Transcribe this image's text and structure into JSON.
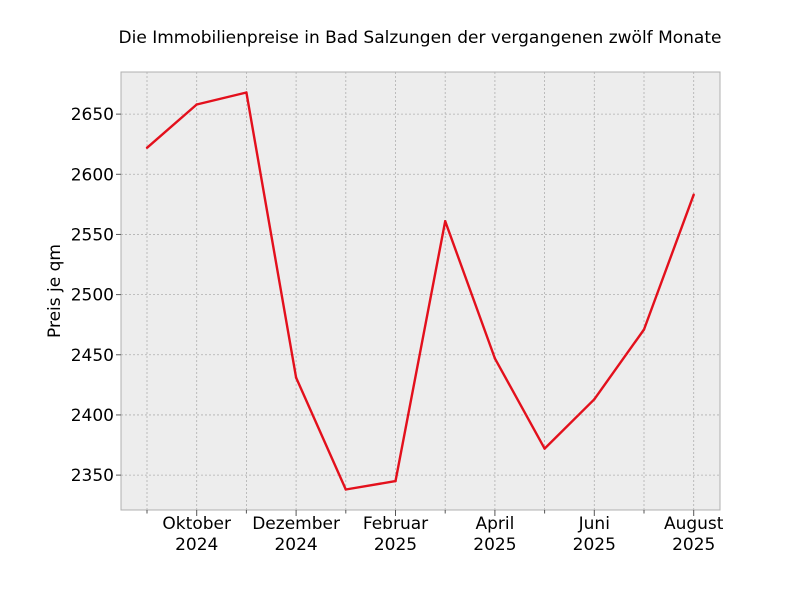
{
  "chart_data": {
    "type": "line",
    "title": "Die Immobilienpreise in Bad Salzungen der vergangenen zwölf Monate",
    "xlabel": "",
    "ylabel": "Preis je qm",
    "x": [
      "2024-09",
      "2024-10",
      "2024-11",
      "2024-12",
      "2025-01",
      "2025-02",
      "2025-03",
      "2025-04",
      "2025-05",
      "2025-06",
      "2025-07",
      "2025-08"
    ],
    "series": [
      {
        "color": "#e3101c",
        "values": [
          2622,
          2658,
          2668,
          2431,
          2338,
          2345,
          2561,
          2447,
          2372,
          2413,
          2471,
          2583
        ]
      }
    ],
    "x_ticks": [
      {
        "x": "2024-10",
        "line1": "Oktober",
        "line2": "2024"
      },
      {
        "x": "2024-12",
        "line1": "Dezember",
        "line2": "2024"
      },
      {
        "x": "2025-02",
        "line1": "Februar",
        "line2": "2025"
      },
      {
        "x": "2025-04",
        "line1": "April",
        "line2": "2025"
      },
      {
        "x": "2025-06",
        "line1": "Juni",
        "line2": "2025"
      },
      {
        "x": "2025-08",
        "line1": "August",
        "line2": "2025"
      }
    ],
    "y_ticks": [
      2350,
      2400,
      2450,
      2500,
      2550,
      2600,
      2650
    ],
    "ylim": [
      2321,
      2685
    ],
    "grid": true,
    "legend": "none",
    "background_color": "#ededed",
    "grid_color": "#b0b0b0"
  }
}
